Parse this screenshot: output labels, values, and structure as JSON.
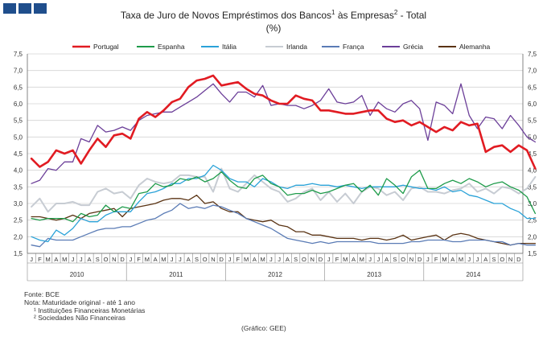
{
  "title_line1": "Taxa de Juro de Novos Empréstimos dos Bancos",
  "title_sup1": "1",
  "title_mid": " às Empresas",
  "title_sup2": "2",
  "title_end": " - Total",
  "title_line2": "(%)",
  "footer": {
    "fonte": "Fonte: BCE",
    "nota": "Nota: Maturidade original - até 1 ano",
    "nota1": "¹ Instituições Financeiras Monetárias",
    "nota2": "² Sociedades Não Financeiras",
    "credit": "(Gráfico: GEE)"
  },
  "chart_data": {
    "type": "line",
    "ylim": [
      1.5,
      7.5
    ],
    "yticks": [
      "1,5",
      "2,0",
      "2,5",
      "3,0",
      "3,5",
      "4,0",
      "4,5",
      "5,0",
      "5,5",
      "6,0",
      "6,5",
      "7,0",
      "7,5"
    ],
    "yticks_values": [
      1.5,
      2.0,
      2.5,
      3.0,
      3.5,
      4.0,
      4.5,
      5.0,
      5.5,
      6.0,
      6.5,
      7.0,
      7.5
    ],
    "months": [
      "J",
      "F",
      "M",
      "A",
      "M",
      "J",
      "J",
      "A",
      "S",
      "O",
      "N",
      "D"
    ],
    "years": [
      "2010",
      "2011",
      "2012",
      "2013",
      "2014"
    ],
    "grid": true,
    "legend_position": "top",
    "series": [
      {
        "name": "Portugal",
        "color": "#e11b22",
        "width": 2.6,
        "values": [
          4.35,
          4.1,
          4.25,
          4.6,
          4.5,
          4.6,
          4.2,
          4.6,
          4.95,
          4.7,
          5.05,
          5.1,
          4.95,
          5.55,
          5.75,
          5.6,
          5.8,
          6.05,
          6.15,
          6.5,
          6.7,
          6.75,
          6.85,
          6.55,
          6.6,
          6.65,
          6.45,
          6.3,
          6.25,
          6.1,
          6.0,
          6.0,
          6.25,
          6.15,
          6.1,
          5.8,
          5.8,
          5.75,
          5.7,
          5.7,
          5.75,
          5.8,
          5.8,
          5.55,
          5.45,
          5.5,
          5.35,
          5.45,
          5.3,
          5.15,
          5.3,
          5.2,
          5.45,
          5.35,
          5.4,
          4.55,
          4.7,
          4.75,
          4.55,
          4.75,
          4.6,
          4.05
        ]
      },
      {
        "name": "Espanha",
        "color": "#1e9b4a",
        "width": 1.3,
        "values": [
          2.55,
          2.5,
          2.55,
          2.55,
          2.55,
          2.45,
          2.7,
          2.6,
          2.65,
          2.95,
          2.75,
          2.9,
          2.85,
          3.3,
          3.35,
          3.6,
          3.5,
          3.55,
          3.75,
          3.7,
          3.8,
          3.65,
          3.75,
          3.95,
          3.7,
          3.5,
          3.45,
          3.75,
          3.85,
          3.6,
          3.5,
          3.25,
          3.3,
          3.3,
          3.4,
          3.3,
          3.35,
          3.45,
          3.55,
          3.6,
          3.35,
          3.55,
          3.25,
          3.75,
          3.55,
          3.3,
          3.8,
          4.0,
          3.45,
          3.45,
          3.6,
          3.7,
          3.6,
          3.75,
          3.65,
          3.5,
          3.6,
          3.65,
          3.5,
          3.4,
          3.2,
          2.7
        ]
      },
      {
        "name": "Itália",
        "color": "#2aa2d8",
        "width": 1.3,
        "values": [
          2.0,
          1.9,
          1.85,
          2.2,
          2.05,
          2.25,
          2.55,
          2.45,
          2.45,
          2.65,
          2.75,
          2.75,
          2.75,
          3.05,
          3.3,
          3.35,
          3.45,
          3.6,
          3.6,
          3.75,
          3.75,
          3.85,
          4.15,
          4.0,
          3.75,
          3.65,
          3.65,
          3.5,
          3.75,
          3.65,
          3.5,
          3.45,
          3.55,
          3.55,
          3.6,
          3.55,
          3.55,
          3.5,
          3.55,
          3.5,
          3.45,
          3.5,
          3.5,
          3.5,
          3.5,
          3.55,
          3.5,
          3.45,
          3.45,
          3.4,
          3.5,
          3.35,
          3.4,
          3.25,
          3.2,
          3.1,
          3.0,
          3.0,
          2.85,
          2.75,
          2.55,
          2.55
        ]
      },
      {
        "name": "Irlanda",
        "color": "#c7ccd3",
        "width": 2.0,
        "values": [
          2.9,
          3.15,
          2.75,
          3.0,
          3.0,
          3.05,
          2.95,
          2.95,
          3.35,
          3.45,
          3.3,
          3.35,
          3.15,
          3.55,
          3.75,
          3.65,
          3.6,
          3.65,
          3.85,
          3.85,
          3.8,
          3.8,
          3.35,
          4.05,
          3.45,
          3.35,
          3.6,
          3.85,
          3.65,
          3.45,
          3.35,
          3.05,
          3.15,
          3.35,
          3.45,
          3.1,
          3.35,
          3.05,
          3.3,
          3.0,
          3.35,
          3.5,
          3.45,
          3.25,
          3.35,
          3.1,
          3.45,
          3.5,
          3.35,
          3.35,
          3.3,
          3.4,
          3.45,
          3.6,
          3.35,
          3.45,
          3.3,
          3.5,
          3.45,
          3.3,
          3.45,
          3.8
        ]
      },
      {
        "name": "França",
        "color": "#5a7bb5",
        "width": 1.3,
        "values": [
          1.75,
          1.7,
          1.95,
          1.9,
          1.9,
          1.9,
          2.0,
          2.1,
          2.2,
          2.25,
          2.25,
          2.3,
          2.3,
          2.4,
          2.5,
          2.55,
          2.7,
          2.8,
          3.0,
          2.85,
          2.9,
          2.85,
          2.95,
          2.9,
          2.8,
          2.7,
          2.55,
          2.45,
          2.35,
          2.25,
          2.1,
          1.95,
          1.9,
          1.85,
          1.8,
          1.85,
          1.8,
          1.85,
          1.85,
          1.85,
          1.85,
          1.85,
          1.8,
          1.8,
          1.8,
          1.8,
          1.85,
          1.85,
          1.9,
          1.9,
          1.9,
          1.85,
          1.85,
          1.9,
          1.9,
          1.9,
          1.85,
          1.85,
          1.75,
          1.8,
          1.75,
          1.75
        ]
      },
      {
        "name": "Grécia",
        "color": "#6c3f99",
        "width": 1.3,
        "values": [
          3.6,
          3.7,
          4.05,
          4.0,
          4.25,
          4.25,
          4.95,
          4.85,
          5.35,
          5.15,
          5.2,
          5.3,
          5.2,
          5.5,
          5.65,
          5.7,
          5.75,
          5.75,
          5.9,
          6.05,
          6.2,
          6.4,
          6.6,
          6.3,
          6.05,
          6.35,
          6.35,
          6.2,
          6.55,
          5.95,
          6.0,
          5.95,
          5.95,
          5.85,
          5.95,
          6.1,
          6.45,
          6.05,
          6.0,
          6.05,
          6.25,
          5.65,
          6.05,
          5.85,
          5.75,
          6.0,
          6.1,
          5.85,
          4.9,
          6.05,
          5.95,
          5.7,
          6.6,
          5.65,
          5.25,
          5.6,
          5.55,
          5.25,
          5.65,
          5.35,
          5.0,
          4.85
        ]
      },
      {
        "name": "Alemanha",
        "color": "#5a3313",
        "width": 1.3,
        "values": [
          2.6,
          2.6,
          2.55,
          2.5,
          2.55,
          2.65,
          2.55,
          2.7,
          2.75,
          2.8,
          2.85,
          2.6,
          2.85,
          2.9,
          2.95,
          3.0,
          3.1,
          3.15,
          3.15,
          3.1,
          3.25,
          3.0,
          3.05,
          2.85,
          2.75,
          2.75,
          2.55,
          2.5,
          2.45,
          2.5,
          2.35,
          2.3,
          2.15,
          2.15,
          2.05,
          2.05,
          2.0,
          1.95,
          1.95,
          1.95,
          1.9,
          1.95,
          1.95,
          1.9,
          1.95,
          2.05,
          1.9,
          1.95,
          2.0,
          2.05,
          1.9,
          2.05,
          2.1,
          2.05,
          1.95,
          1.9,
          1.85,
          1.8,
          1.75,
          1.8,
          1.8,
          1.8
        ]
      }
    ]
  }
}
